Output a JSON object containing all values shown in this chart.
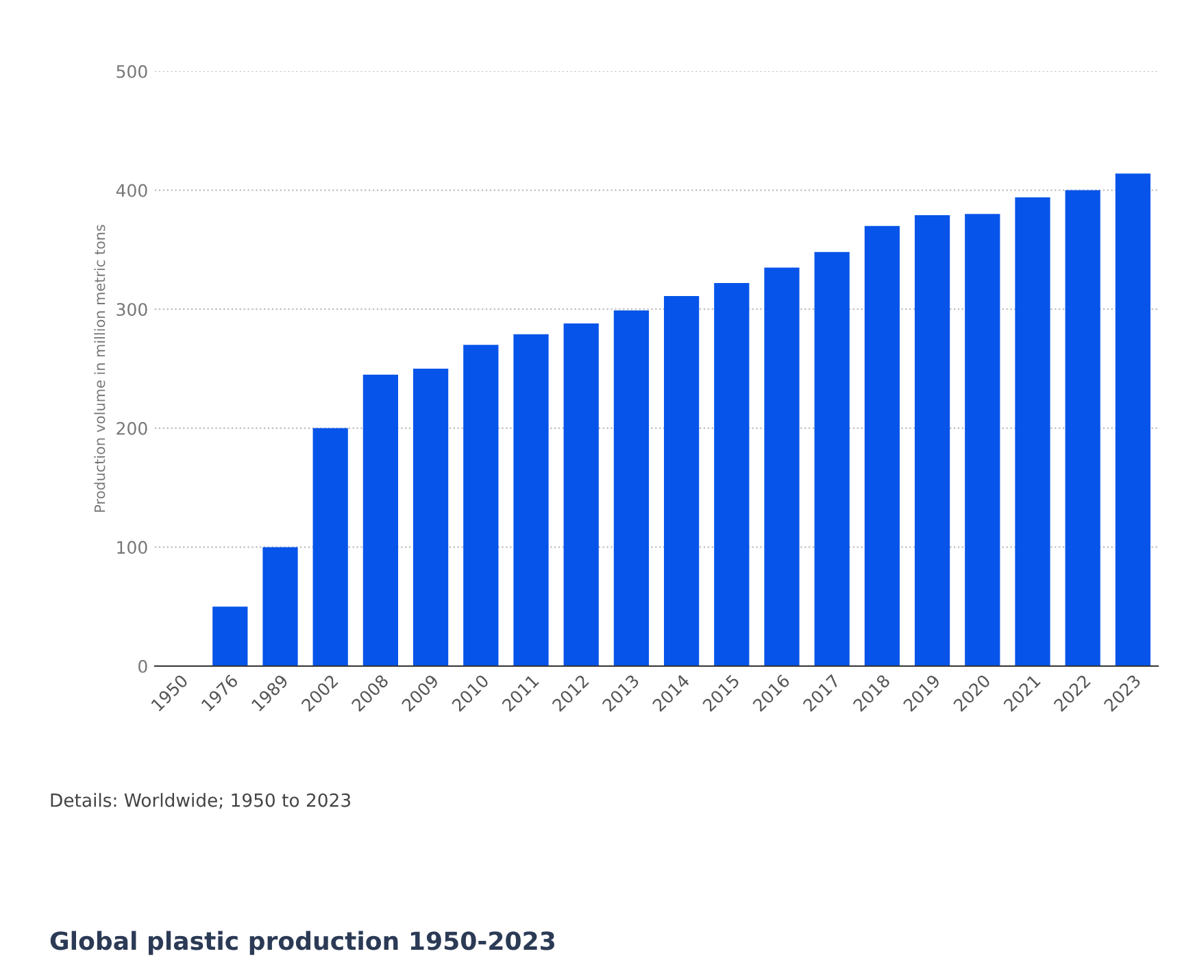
{
  "chart_data": {
    "type": "bar",
    "title": "Global plastic production 1950-2023",
    "ylabel": "Production volume in million metric tons",
    "categories": [
      "1950",
      "1976",
      "1989",
      "2002",
      "2008",
      "2009",
      "2010",
      "2011",
      "2012",
      "2013",
      "2014",
      "2015",
      "2016",
      "2017",
      "2018",
      "2019",
      "2020",
      "2021",
      "2022",
      "2023"
    ],
    "values": [
      0,
      50,
      100,
      200,
      245,
      250,
      270,
      279,
      288,
      299,
      311,
      322,
      335,
      348,
      370,
      379,
      380,
      394,
      400,
      414
    ],
    "color": "#0654e9",
    "ylim": [
      0,
      500
    ],
    "yticks": [
      0,
      100,
      200,
      300,
      400,
      500
    ],
    "grid": "y",
    "legend": false,
    "annotations": [
      "Details: Worldwide; 1950 to 2023"
    ]
  }
}
